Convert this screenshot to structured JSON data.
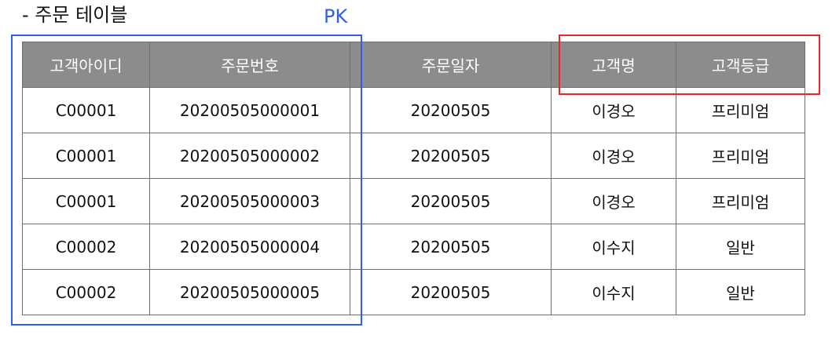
{
  "caption": "- 주문 테이블",
  "pk_label": "PK",
  "table": {
    "headers": [
      "고객아이디",
      "주문번호",
      "주문일자",
      "고객명",
      "고객등급"
    ],
    "rows": [
      [
        "C00001",
        "20200505000001",
        "20200505",
        "이경오",
        "프리미엄"
      ],
      [
        "C00001",
        "20200505000002",
        "20200505",
        "이경오",
        "프리미엄"
      ],
      [
        "C00001",
        "20200505000003",
        "20200505",
        "이경오",
        "프리미엄"
      ],
      [
        "C00002",
        "20200505000004",
        "20200505",
        "이수지",
        "일반"
      ],
      [
        "C00002",
        "20200505000005",
        "20200505",
        "이수지",
        "일반"
      ]
    ]
  },
  "colors": {
    "header_bg": "#8c8c8c",
    "pk_box": "#2f5fe8",
    "highlight_box": "#e8262b"
  }
}
